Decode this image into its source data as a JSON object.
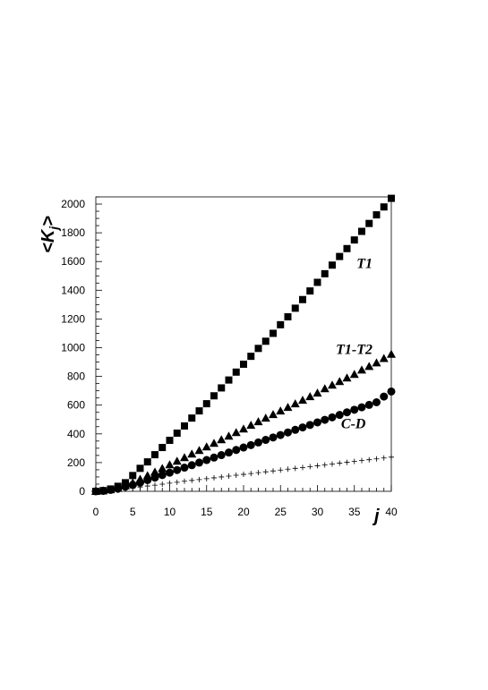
{
  "chart_data": {
    "type": "scatter",
    "xlabel": "j",
    "ylabel": "<K_j>",
    "xlim": [
      0,
      40
    ],
    "ylim": [
      0,
      2050
    ],
    "xticks": [
      0,
      5,
      10,
      15,
      20,
      25,
      30,
      35,
      40
    ],
    "yticks": [
      0,
      200,
      400,
      600,
      800,
      1000,
      1200,
      1400,
      1600,
      1800,
      2000
    ],
    "grid": false,
    "x": [
      0,
      1,
      2,
      3,
      4,
      5,
      6,
      7,
      8,
      9,
      10,
      11,
      12,
      13,
      14,
      15,
      16,
      17,
      18,
      19,
      20,
      21,
      22,
      23,
      24,
      25,
      26,
      27,
      28,
      29,
      30,
      31,
      32,
      33,
      34,
      35,
      36,
      37,
      38,
      39,
      40
    ],
    "series": [
      {
        "name": "T1",
        "marker": "square",
        "values": [
          0,
          5,
          16,
          35,
          60,
          110,
          160,
          205,
          255,
          305,
          355,
          405,
          455,
          510,
          560,
          610,
          665,
          720,
          775,
          830,
          885,
          940,
          995,
          1045,
          1100,
          1160,
          1215,
          1275,
          1335,
          1395,
          1455,
          1515,
          1575,
          1635,
          1690,
          1750,
          1810,
          1865,
          1925,
          1980,
          2040
        ]
      },
      {
        "name": "T1-T2",
        "marker": "triangle",
        "values": [
          0,
          4,
          12,
          22,
          40,
          60,
          85,
          110,
          135,
          160,
          185,
          210,
          235,
          260,
          285,
          310,
          335,
          360,
          385,
          410,
          435,
          460,
          485,
          510,
          535,
          560,
          585,
          610,
          635,
          660,
          685,
          715,
          740,
          765,
          790,
          815,
          845,
          870,
          895,
          925,
          955
        ]
      },
      {
        "name": "C-D",
        "marker": "circle",
        "values": [
          0,
          3,
          10,
          18,
          32,
          45,
          60,
          78,
          95,
          113,
          130,
          148,
          165,
          182,
          200,
          218,
          235,
          252,
          270,
          288,
          305,
          322,
          340,
          358,
          375,
          392,
          410,
          428,
          445,
          462,
          480,
          498,
          515,
          532,
          550,
          568,
          585,
          602,
          620,
          660,
          695
        ]
      },
      {
        "name": "",
        "marker": "plus",
        "values": [
          0,
          1,
          3,
          8,
          15,
          22,
          30,
          37,
          43,
          50,
          57,
          63,
          70,
          76,
          82,
          88,
          94,
          100,
          106,
          112,
          118,
          124,
          130,
          136,
          142,
          148,
          154,
          160,
          166,
          172,
          178,
          184,
          190,
          196,
          202,
          208,
          214,
          220,
          226,
          232,
          238
        ]
      }
    ],
    "annotations": [
      {
        "text": "T1",
        "x": 35.3,
        "y": 1555
      },
      {
        "text": "T1-T2",
        "x": 32.5,
        "y": 955
      },
      {
        "text": "C-D",
        "x": 33.2,
        "y": 440
      }
    ]
  }
}
